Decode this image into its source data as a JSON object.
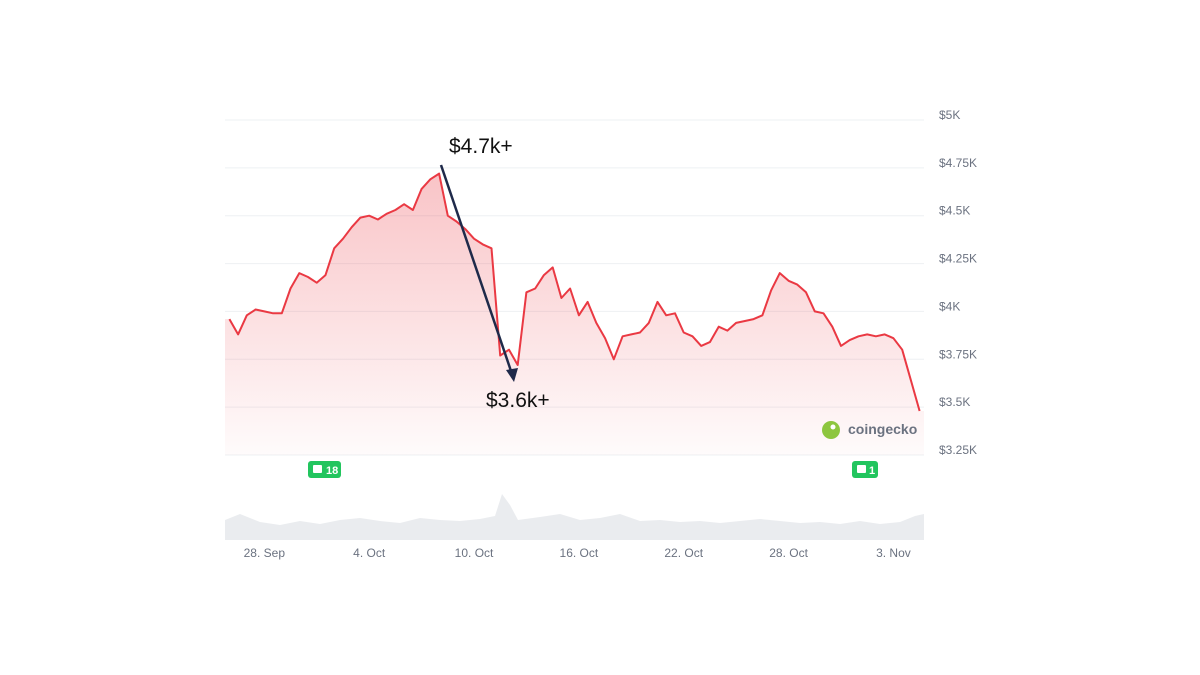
{
  "chart_data": {
    "type": "area-line",
    "categories": [
      null,
      null,
      null,
      null,
      "28. Sep",
      null,
      null,
      null,
      null,
      null,
      null,
      null,
      null,
      null,
      null,
      null,
      "4. Oct",
      null,
      null,
      null,
      null,
      null,
      null,
      null,
      null,
      null,
      null,
      null,
      "10. Oct",
      null,
      null,
      null,
      null,
      null,
      null,
      null,
      null,
      null,
      null,
      null,
      "16. Oct",
      null,
      null,
      null,
      null,
      null,
      null,
      null,
      null,
      null,
      null,
      null,
      "22. Oct",
      null,
      null,
      null,
      null,
      null,
      null,
      null,
      null,
      null,
      null,
      null,
      "28. Oct",
      null,
      null,
      null,
      null,
      null,
      null,
      null,
      null,
      null,
      null,
      null,
      "3. Nov",
      null,
      null,
      null
    ],
    "values": [
      3960,
      3880,
      3980,
      4010,
      4000,
      3990,
      3990,
      4120,
      4200,
      4180,
      4150,
      4190,
      4330,
      4380,
      4440,
      4490,
      4500,
      4480,
      4510,
      4530,
      4560,
      4530,
      4640,
      4690,
      4720,
      4500,
      4470,
      4430,
      4380,
      4350,
      4330,
      3770,
      3800,
      3720,
      4100,
      4120,
      4190,
      4230,
      4070,
      4120,
      3980,
      4050,
      3940,
      3860,
      3750,
      3870,
      3880,
      3890,
      3940,
      4050,
      3980,
      3990,
      3890,
      3870,
      3820,
      3840,
      3920,
      3900,
      3940,
      3950,
      3960,
      3980,
      4110,
      4200,
      4160,
      4140,
      4100,
      4000,
      3990,
      3920,
      3820,
      3850,
      3870,
      3880,
      3870,
      3880,
      3860,
      3800,
      3640,
      3480
    ],
    "color": "#ea3943",
    "ylim": [
      3250,
      5000
    ],
    "yticks": [
      {
        "value": 3250,
        "label": "$3.25K"
      },
      {
        "value": 3500,
        "label": "$3.5K"
      },
      {
        "value": 3750,
        "label": "$3.75K"
      },
      {
        "value": 4000,
        "label": "$4K"
      },
      {
        "value": 4250,
        "label": "$4.25K"
      },
      {
        "value": 4500,
        "label": "$4.5K"
      },
      {
        "value": 4750,
        "label": "$4.75K"
      },
      {
        "value": 5000,
        "label": "$5K"
      }
    ],
    "grid": true,
    "annotations": [
      "$4.7k+",
      "$3.6k+"
    ],
    "badges": [
      "18",
      "1"
    ],
    "watermark": "coingecko"
  }
}
